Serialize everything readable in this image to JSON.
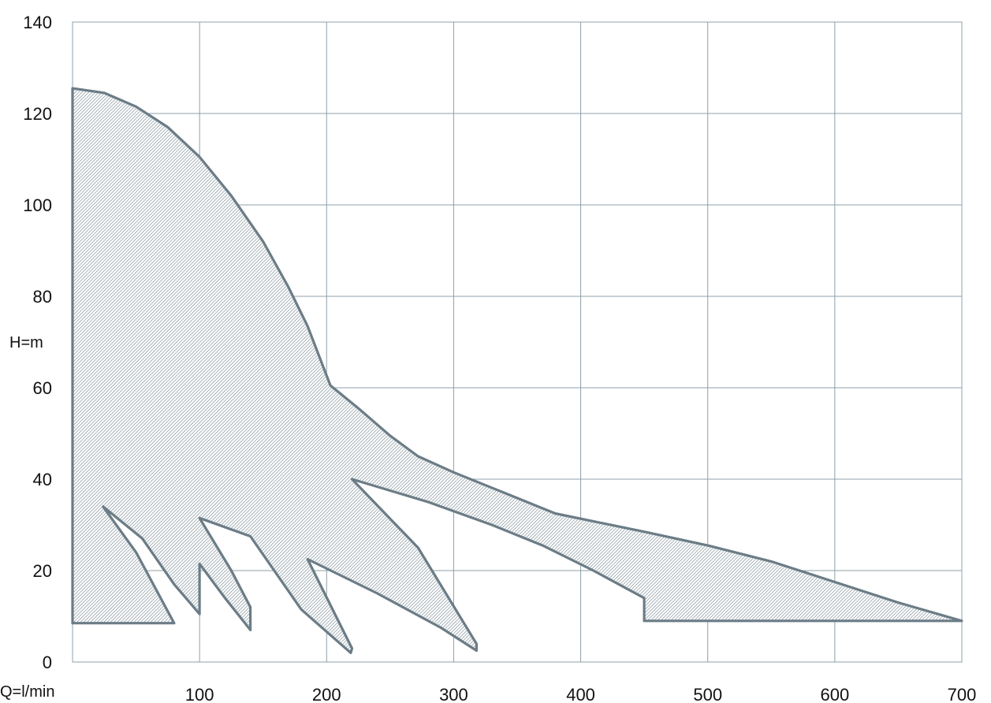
{
  "chart_data": {
    "type": "area",
    "title": "",
    "xlabel": "Q=l/min",
    "ylabel": "H=m",
    "xlim": [
      0,
      700
    ],
    "ylim": [
      0,
      140
    ],
    "x_ticks": [
      100,
      200,
      300,
      400,
      500,
      600,
      700
    ],
    "y_ticks": [
      0,
      20,
      40,
      60,
      80,
      100,
      120,
      140
    ],
    "grid": true,
    "legend": "none",
    "colors": {
      "stroke": "#6b7c86",
      "grid": "#8fa0aa",
      "hatch": "#7a8a93"
    },
    "envelope": {
      "points": [
        [
          0,
          125.5
        ],
        [
          25,
          124.5
        ],
        [
          50,
          121.5
        ],
        [
          75,
          117
        ],
        [
          100,
          110.5
        ],
        [
          125,
          102
        ],
        [
          150,
          92
        ],
        [
          170,
          82
        ],
        [
          185,
          73.5
        ],
        [
          203,
          60.5
        ],
        [
          225,
          55.5
        ],
        [
          250,
          49.5
        ],
        [
          272,
          45
        ],
        [
          300,
          41.5
        ],
        [
          340,
          37
        ],
        [
          380,
          32.5
        ],
        [
          450,
          28.5
        ],
        [
          500,
          25.5
        ],
        [
          550,
          22
        ],
        [
          600,
          17.5
        ],
        [
          650,
          13
        ],
        [
          700,
          9
        ],
        [
          700,
          9
        ],
        [
          450,
          9
        ],
        [
          450,
          14
        ],
        [
          410,
          20
        ],
        [
          370,
          25.5
        ],
        [
          330,
          30
        ],
        [
          280,
          35
        ],
        [
          220,
          40
        ],
        [
          272,
          25
        ],
        [
          318,
          4
        ],
        [
          318,
          2.5
        ],
        [
          290,
          7.5
        ],
        [
          240,
          15
        ],
        [
          185,
          22.5
        ],
        [
          220,
          3
        ],
        [
          219,
          2
        ],
        [
          180,
          11.5
        ],
        [
          140,
          27.5
        ],
        [
          100,
          31.5
        ],
        [
          125,
          20
        ],
        [
          140,
          12
        ],
        [
          140,
          7
        ],
        [
          120,
          14
        ],
        [
          100,
          21.5
        ],
        [
          100,
          10.5
        ],
        [
          80,
          17
        ],
        [
          55,
          27
        ],
        [
          24,
          34
        ],
        [
          50,
          24
        ],
        [
          80,
          8.5
        ],
        [
          0,
          8.5
        ]
      ]
    }
  }
}
